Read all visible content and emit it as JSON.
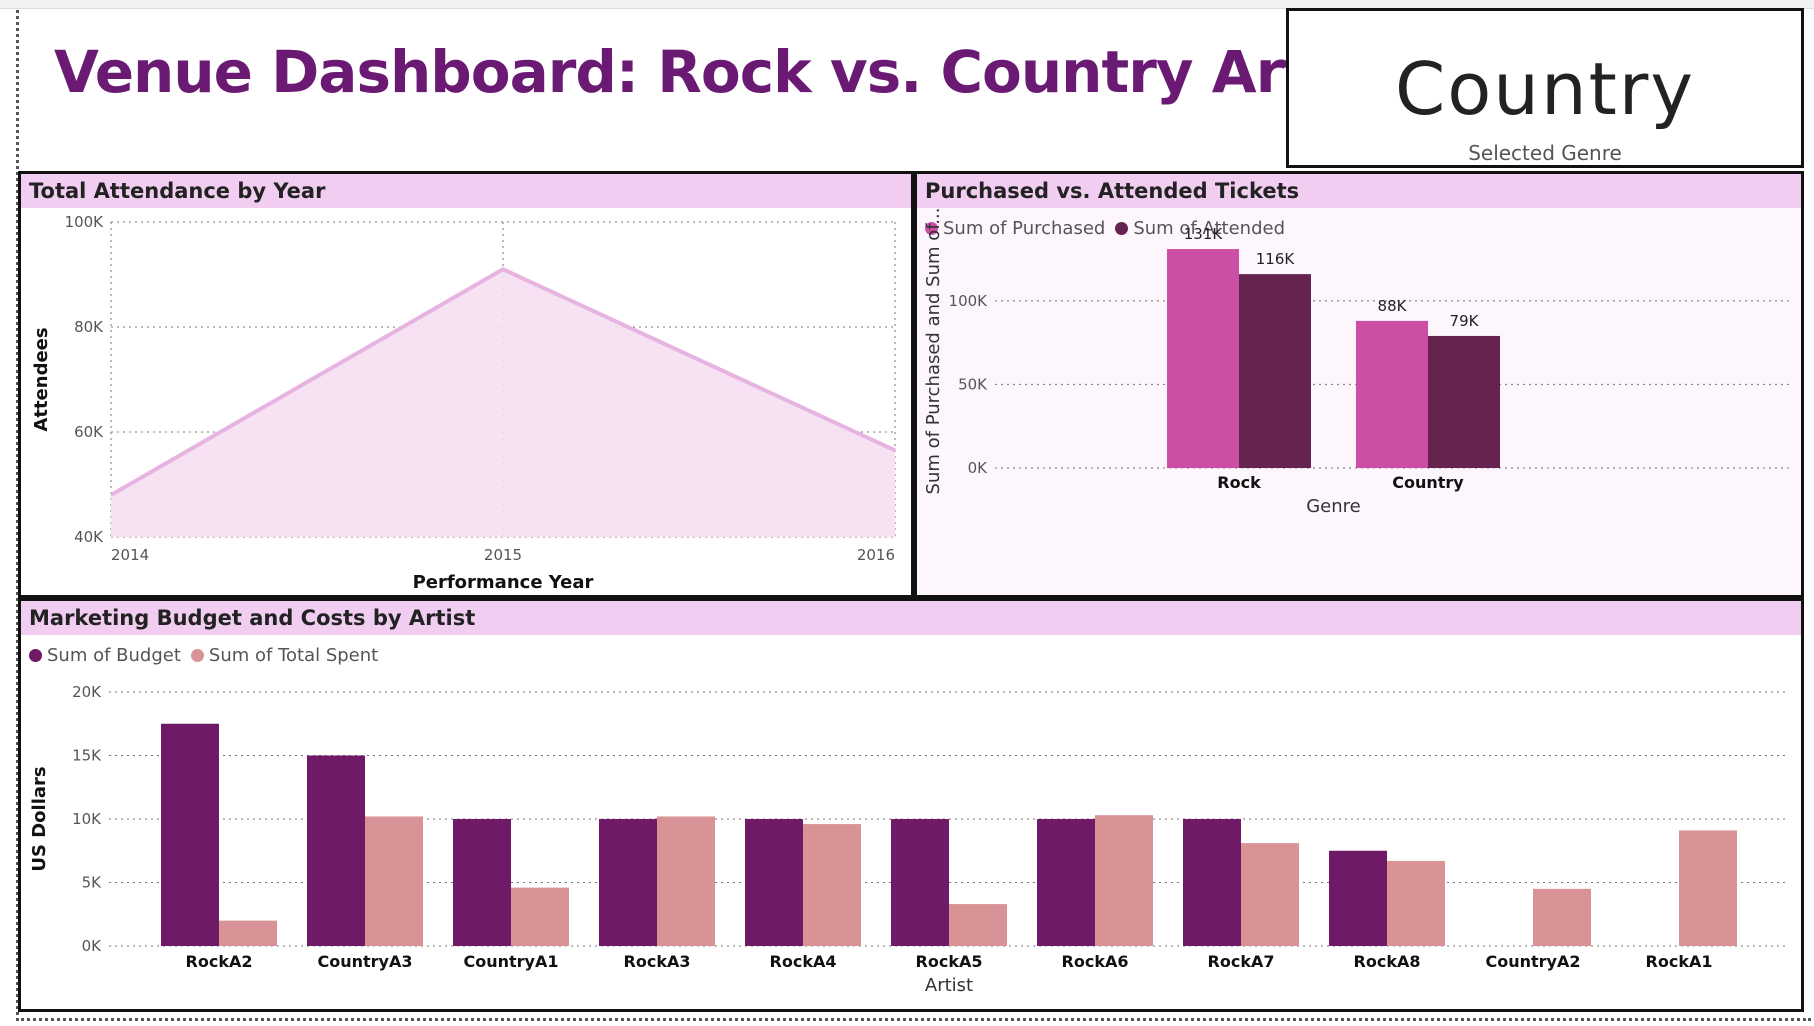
{
  "dashboard": {
    "title": "Venue Dashboard: Rock vs. Country Artists"
  },
  "card": {
    "value": "Country",
    "label": "Selected Genre"
  },
  "colors": {
    "title": "#6b1a74",
    "header_bg": "#f2cdf2",
    "attendance_line": "#e7b3e0",
    "attendance_fill": "#f5dff2",
    "purchased": "#cc4fa6",
    "attended": "#64244f",
    "budget": "#6e1a67",
    "spent": "#d99396"
  },
  "attendance": {
    "header": "Total Attendance by Year",
    "chart_data": {
      "type": "area",
      "x": [
        2014,
        2015,
        2016
      ],
      "values": [
        48000,
        91000,
        56500
      ],
      "xlabel": "Performance Year",
      "ylabel": "Attendees",
      "ylim": [
        40000,
        100000
      ],
      "y_ticks": [
        40000,
        60000,
        80000,
        100000
      ],
      "y_tick_labels": [
        "40K",
        "60K",
        "80K",
        "100K"
      ],
      "grid": true
    }
  },
  "tickets": {
    "header": "Purchased vs. Attended Tickets",
    "chart_data": {
      "type": "bar",
      "categories": [
        "Rock",
        "Country"
      ],
      "series": [
        {
          "name": "Sum of Purchased",
          "values": [
            131000,
            88000
          ],
          "labels": [
            "131K",
            "88K"
          ]
        },
        {
          "name": "Sum of Attended",
          "values": [
            116000,
            79000
          ],
          "labels": [
            "116K",
            "79K"
          ]
        }
      ],
      "xlabel": "Genre",
      "ylabel": "Sum of Purchased and Sum of...",
      "ylim": [
        0,
        140000
      ],
      "y_ticks": [
        0,
        50000,
        100000
      ],
      "y_tick_labels": [
        "0K",
        "50K",
        "100K"
      ],
      "legend": "top-left",
      "grid": true
    }
  },
  "marketing": {
    "header": "Marketing Budget and Costs by Artist",
    "chart_data": {
      "type": "bar",
      "categories": [
        "RockA2",
        "CountryA3",
        "CountryA1",
        "RockA3",
        "RockA4",
        "RockA5",
        "RockA6",
        "RockA7",
        "RockA8",
        "CountryA2",
        "RockA1"
      ],
      "series": [
        {
          "name": "Sum of Budget",
          "values": [
            17500,
            15000,
            10000,
            10000,
            10000,
            10000,
            10000,
            10000,
            7500,
            0,
            0
          ]
        },
        {
          "name": "Sum of Total Spent",
          "values": [
            2000,
            10200,
            4600,
            10200,
            9600,
            3300,
            10300,
            8100,
            6700,
            4500,
            9100
          ]
        }
      ],
      "xlabel": "Artist",
      "ylabel": "US Dollars",
      "ylim": [
        0,
        20000
      ],
      "y_ticks": [
        0,
        5000,
        10000,
        15000,
        20000
      ],
      "y_tick_labels": [
        "0K",
        "5K",
        "10K",
        "15K",
        "20K"
      ],
      "legend": "top-left",
      "grid": true
    }
  }
}
